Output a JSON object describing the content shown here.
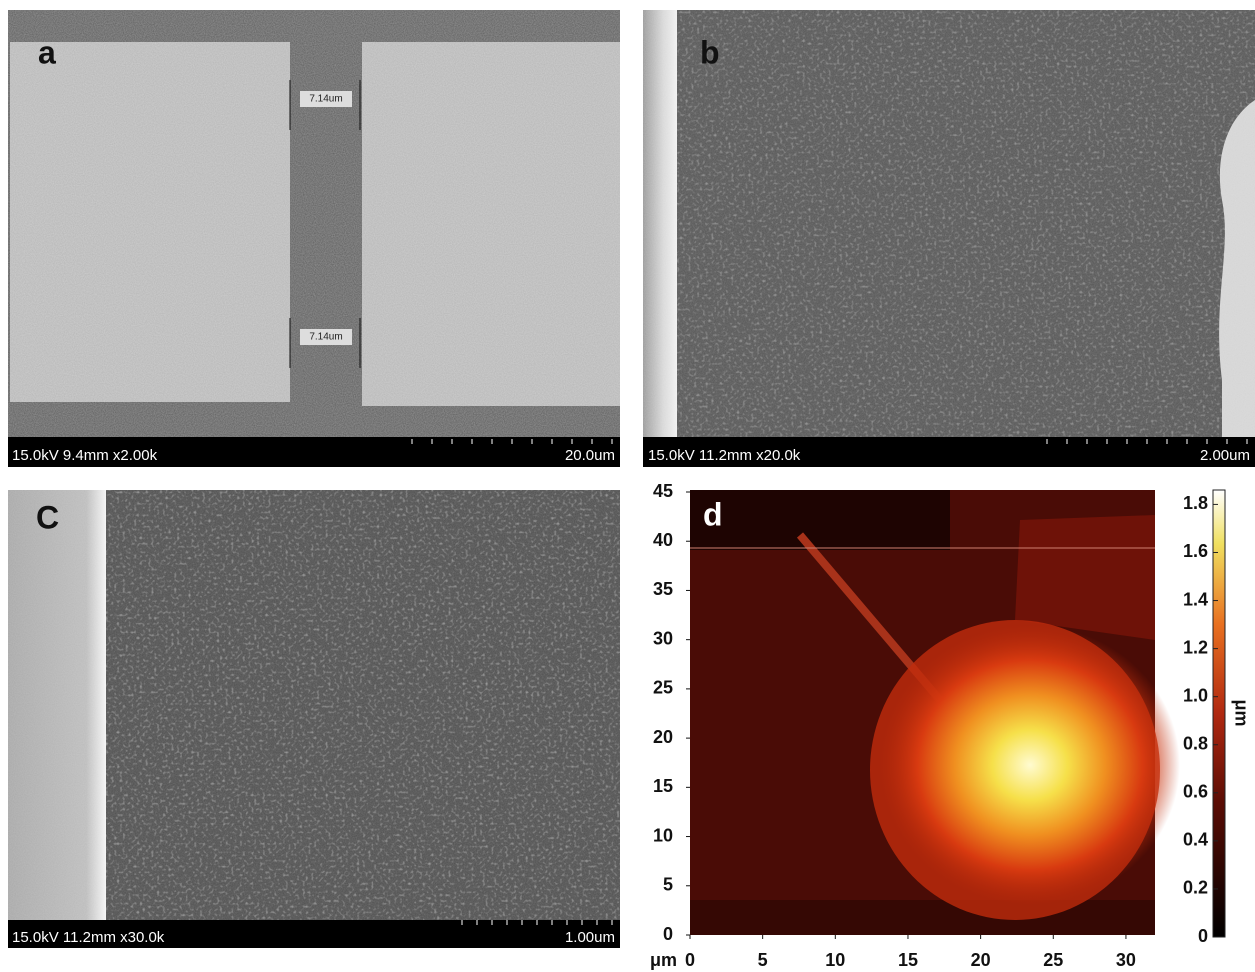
{
  "panels": [
    {
      "label": "a",
      "info": "15.0kV 9.4mm x2.00k",
      "scale": "20.0um",
      "measurements": [
        "7.14um",
        "7.14um"
      ]
    },
    {
      "label": "b",
      "info": "15.0kV 11.2mm x20.0k",
      "scale": "2.00um"
    },
    {
      "label": "C",
      "info": "15.0kV 11.2mm x30.0k",
      "scale": "1.00um"
    }
  ],
  "afm": {
    "label": "d",
    "axis_unit": "μm",
    "xlim": [
      0,
      32
    ],
    "xticks": [
      0,
      5,
      10,
      15,
      20,
      25,
      30
    ],
    "ylim": [
      0,
      45
    ],
    "yticks": [
      0,
      5,
      10,
      15,
      20,
      25,
      30,
      35,
      40,
      45
    ],
    "colorbar": {
      "label": "μm",
      "lim": [
        0,
        1.86
      ],
      "ticks": [
        0,
        0.2,
        0.4,
        0.6,
        0.8,
        {
          "value": 1,
          "label": "1.0"
        },
        1.2,
        1.4,
        1.6,
        1.8
      ]
    }
  }
}
